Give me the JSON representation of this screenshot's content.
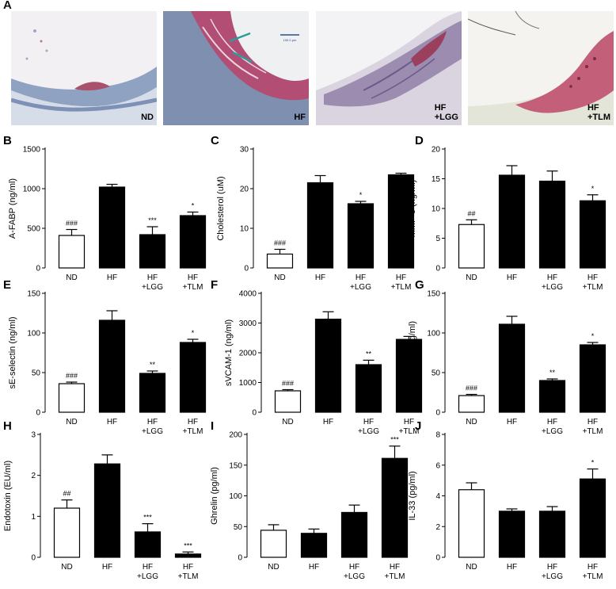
{
  "figure": {
    "top_label": "A",
    "micrographs": [
      {
        "tag_lines": [
          "ND"
        ],
        "scale_bar_label": ""
      },
      {
        "tag_lines": [
          "HF"
        ],
        "scale_bar_label": "100.0 μm"
      },
      {
        "tag_lines": [
          "HF",
          "+LGG"
        ],
        "scale_bar_label": ""
      },
      {
        "tag_lines": [
          "HF",
          "+TLM"
        ],
        "scale_bar_label": ""
      }
    ]
  },
  "chart_data": [
    {
      "panel": "B",
      "type": "bar",
      "ylabel": "A-FABP (ng/ml)",
      "ylim": [
        0,
        1500
      ],
      "yticks": [
        0,
        500,
        1000,
        1500
      ],
      "categories": [
        [
          "ND"
        ],
        [
          "HF"
        ],
        [
          "HF",
          "+LGG"
        ],
        [
          "HF",
          "+TLM"
        ]
      ],
      "fills": [
        "white",
        "black",
        "black",
        "black"
      ],
      "values": [
        410,
        1020,
        420,
        660
      ],
      "errors": [
        75,
        35,
        100,
        45
      ],
      "annotations": [
        "###",
        "",
        "***",
        "*"
      ]
    },
    {
      "panel": "C",
      "type": "bar",
      "ylabel": "Cholesterol (uM)",
      "ylim": [
        0,
        30
      ],
      "yticks": [
        0,
        10,
        20,
        30
      ],
      "categories": [
        [
          "ND"
        ],
        [
          "HF"
        ],
        [
          "HF",
          "+LGG"
        ],
        [
          "HF",
          "+TLM"
        ]
      ],
      "fills": [
        "white",
        "black",
        "black",
        "black"
      ],
      "values": [
        3.5,
        21.5,
        16.2,
        23.5
      ],
      "errors": [
        1.2,
        1.8,
        0.6,
        0.4
      ],
      "annotations": [
        "###",
        "",
        "*",
        ""
      ]
    },
    {
      "panel": "D",
      "type": "bar",
      "ylabel": "MMP-9 (ng/ml)",
      "ylim": [
        0,
        20
      ],
      "yticks": [
        0,
        5,
        10,
        15,
        20
      ],
      "categories": [
        [
          "ND"
        ],
        [
          "HF"
        ],
        [
          "HF",
          "+LGG"
        ],
        [
          "HF",
          "+TLM"
        ]
      ],
      "fills": [
        "white",
        "black",
        "black",
        "black"
      ],
      "values": [
        7.3,
        15.6,
        14.6,
        11.3
      ],
      "errors": [
        0.8,
        1.6,
        1.7,
        1.0
      ],
      "annotations": [
        "##",
        "",
        "",
        "*"
      ]
    },
    {
      "panel": "E",
      "type": "bar",
      "ylabel": "sE-selectin (ng/ml)",
      "ylim": [
        0,
        150
      ],
      "yticks": [
        0,
        50,
        100,
        150
      ],
      "categories": [
        [
          "ND"
        ],
        [
          "HF"
        ],
        [
          "HF",
          "+LGG"
        ],
        [
          "HF",
          "+TLM"
        ]
      ],
      "fills": [
        "white",
        "black",
        "black",
        "black"
      ],
      "values": [
        36,
        116,
        49,
        88
      ],
      "errors": [
        2,
        12,
        3,
        4
      ],
      "annotations": [
        "###",
        "",
        "**",
        "*"
      ]
    },
    {
      "panel": "F",
      "type": "bar",
      "ylabel": "sVCAM-1 (ng/ml)",
      "ylim": [
        0,
        4000
      ],
      "yticks": [
        0,
        1000,
        2000,
        3000,
        4000
      ],
      "categories": [
        [
          "ND"
        ],
        [
          "HF"
        ],
        [
          "HF",
          "+LGG"
        ],
        [
          "HF",
          "+TLM"
        ]
      ],
      "fills": [
        "white",
        "black",
        "black",
        "black"
      ],
      "values": [
        720,
        3130,
        1600,
        2450
      ],
      "errors": [
        40,
        250,
        150,
        100
      ],
      "annotations": [
        "###",
        "",
        "**",
        ""
      ]
    },
    {
      "panel": "G",
      "type": "bar",
      "ylabel": "sICAM-1 (ng/ml)",
      "ylim": [
        0,
        150
      ],
      "yticks": [
        0,
        50,
        100,
        150
      ],
      "categories": [
        [
          "ND"
        ],
        [
          "HF"
        ],
        [
          "HF",
          "+LGG"
        ],
        [
          "HF",
          "+TLM"
        ]
      ],
      "fills": [
        "white",
        "black",
        "black",
        "black"
      ],
      "values": [
        21,
        111,
        40,
        85
      ],
      "errors": [
        1.5,
        10,
        2,
        3
      ],
      "annotations": [
        "###",
        "",
        "**",
        "*"
      ]
    },
    {
      "panel": "H",
      "type": "bar",
      "ylabel": "Endotoxin (EU/ml)",
      "ylim": [
        0,
        3
      ],
      "yticks": [
        0,
        1,
        2,
        3
      ],
      "categories": [
        [
          "ND"
        ],
        [
          "HF"
        ],
        [
          "HF",
          "+LGG"
        ],
        [
          "HF",
          "+TLM"
        ]
      ],
      "fills": [
        "white",
        "black",
        "black",
        "black"
      ],
      "values": [
        1.2,
        2.28,
        0.62,
        0.08
      ],
      "errors": [
        0.2,
        0.22,
        0.2,
        0.05
      ],
      "annotations": [
        "##",
        "",
        "***",
        "***"
      ]
    },
    {
      "panel": "I",
      "type": "bar",
      "ylabel": "Ghrelin (pg/ml)",
      "ylim": [
        0,
        200
      ],
      "yticks": [
        0,
        50,
        100,
        150,
        200
      ],
      "categories": [
        [
          "ND"
        ],
        [
          "HF"
        ],
        [
          "HF",
          "+LGG"
        ],
        [
          "HF",
          "+TLM"
        ]
      ],
      "fills": [
        "white",
        "black",
        "black",
        "black"
      ],
      "values": [
        44,
        39,
        73,
        161
      ],
      "errors": [
        9,
        7,
        12,
        20
      ],
      "annotations": [
        "",
        "",
        "",
        "***"
      ]
    },
    {
      "panel": "J",
      "type": "bar",
      "ylabel": "IL-33 (pg/ml)",
      "ylim": [
        0,
        8
      ],
      "yticks": [
        0,
        2,
        4,
        6,
        8
      ],
      "categories": [
        [
          "ND"
        ],
        [
          "HF"
        ],
        [
          "HF",
          "+LGG"
        ],
        [
          "HF",
          "+TLM"
        ]
      ],
      "fills": [
        "white",
        "black",
        "black",
        "black"
      ],
      "values": [
        4.4,
        3.0,
        3.0,
        5.1
      ],
      "errors": [
        0.45,
        0.15,
        0.3,
        0.65
      ],
      "annotations": [
        "",
        "",
        "",
        "*"
      ]
    }
  ]
}
